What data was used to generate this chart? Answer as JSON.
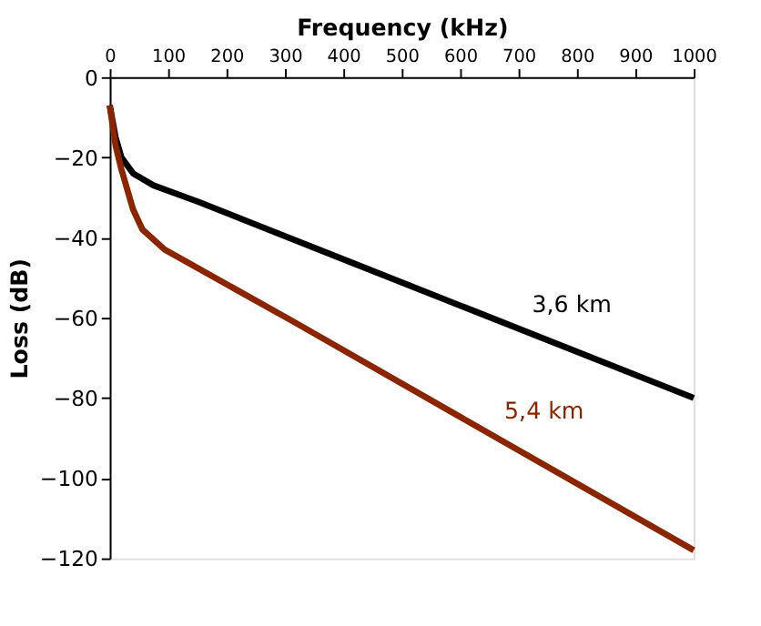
{
  "chart_data": {
    "type": "line",
    "xlabel": "Frequency (kHz)",
    "ylabel": "Loss (dB)",
    "xlim": [
      0,
      1000
    ],
    "xticks": [
      0,
      100,
      200,
      300,
      400,
      500,
      600,
      700,
      800,
      900,
      1000
    ],
    "ylim": [
      -120,
      0
    ],
    "yticks": [
      0,
      -20,
      -40,
      -60,
      -80,
      -100,
      -120
    ],
    "grid": false,
    "legend": false,
    "marker": "none",
    "line_style": "solid",
    "series": [
      {
        "name": "3,6 km",
        "color": "#000000",
        "x": [
          0,
          5,
          10,
          20,
          40,
          75,
          150,
          410,
          1000
        ],
        "values": [
          -7,
          -11,
          -15,
          -20,
          -24,
          -27,
          -31,
          -46,
          -80
        ]
      },
      {
        "name": "5,4 km",
        "color": "#8b2500",
        "x": [
          0,
          5,
          10,
          20,
          40,
          56,
          94,
          315,
          1000
        ],
        "values": [
          -7,
          -12,
          -17,
          -23,
          -33,
          -38,
          -43,
          -61,
          -118
        ]
      }
    ]
  }
}
